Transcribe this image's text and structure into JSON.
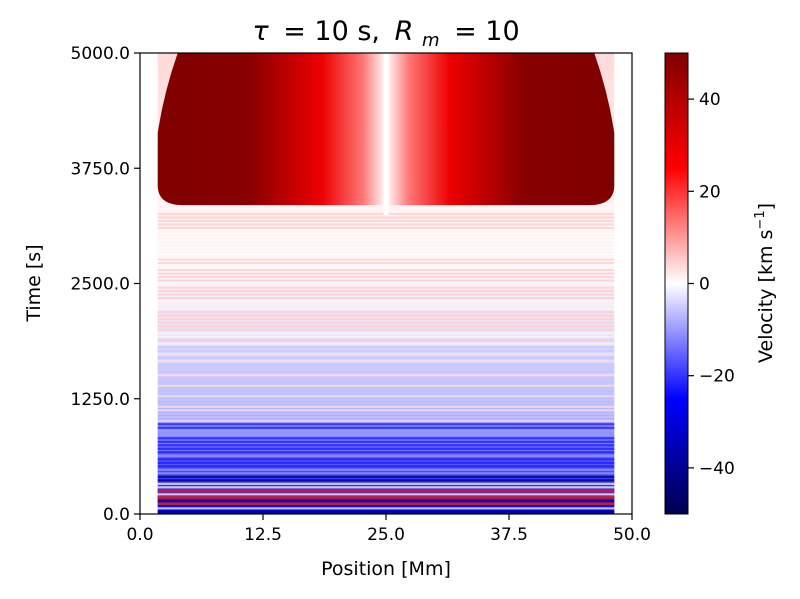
{
  "chart_data": {
    "type": "heatmap",
    "title_parts": {
      "tau_symbol": "τ",
      "tau_value": "= 10 s,",
      "rm_symbol": "R",
      "rm_subscript": "m",
      "rm_value": "= 10"
    },
    "xlabel": "Position [Mm]",
    "ylabel": "Time [s]",
    "xlim": [
      0,
      50
    ],
    "ylim": [
      0,
      5000
    ],
    "x_ticks": [
      0,
      12.5,
      25,
      37.5,
      50
    ],
    "x_tick_labels": [
      "0.0",
      "12.5",
      "25.0",
      "37.5",
      "50.0"
    ],
    "y_ticks": [
      0,
      1250,
      2500,
      3750,
      5000
    ],
    "y_tick_labels": [
      "0.0",
      "1250.0",
      "2500.0",
      "3750.0",
      "5000.0"
    ],
    "colorbar": {
      "label": "Velocity [km s",
      "label_superscript": "−1",
      "label_suffix": "]",
      "vmin": -50,
      "vmax": 50,
      "ticks": [
        40,
        20,
        0,
        -20,
        -40
      ],
      "tick_labels": [
        "40",
        "20",
        "0",
        "−20",
        "−40"
      ],
      "colormap": "seismic",
      "colors": [
        "#00004c",
        "#0000ff",
        "#ffffff",
        "#ff0000",
        "#800000"
      ]
    },
    "features": {
      "domain_edges_mm": [
        1.8,
        48.2
      ],
      "saturated_region_time_s": [
        3350,
        5000
      ],
      "centre_line_mm": 25
    }
  }
}
